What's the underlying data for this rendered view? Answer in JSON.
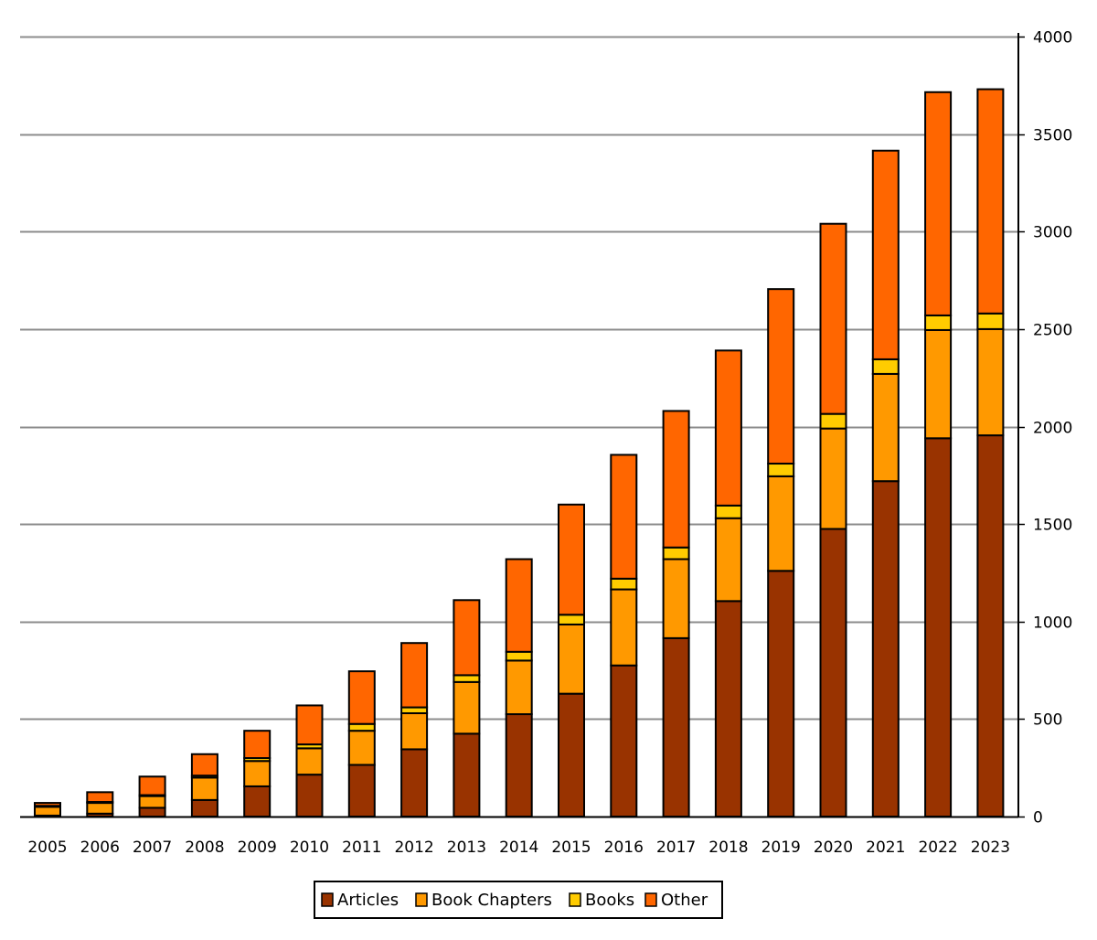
{
  "chart_data": {
    "type": "bar",
    "stacked": true,
    "title": "",
    "xlabel": "",
    "ylabel": "",
    "ylim": [
      0,
      4000
    ],
    "yticks": [
      0,
      500,
      1000,
      1500,
      2000,
      2500,
      3000,
      3500,
      4000
    ],
    "y_axis_side": "right",
    "grid": true,
    "legend_position": "bottom-center",
    "categories": [
      "2005",
      "2006",
      "2007",
      "2008",
      "2009",
      "2010",
      "2011",
      "2012",
      "2013",
      "2014",
      "2015",
      "2016",
      "2017",
      "2018",
      "2019",
      "2020",
      "2021",
      "2022",
      "2023"
    ],
    "series": [
      {
        "name": "Articles",
        "color": "#993300",
        "values": [
          5,
          15,
          45,
          85,
          155,
          215,
          265,
          345,
          425,
          525,
          630,
          775,
          915,
          1105,
          1260,
          1475,
          1720,
          1940,
          1955
        ]
      },
      {
        "name": "Book Chapters",
        "color": "#ff9900",
        "values": [
          45,
          55,
          60,
          115,
          130,
          135,
          175,
          185,
          265,
          275,
          355,
          390,
          405,
          425,
          485,
          515,
          550,
          555,
          545
        ]
      },
      {
        "name": "Books",
        "color": "#ffcc00",
        "values": [
          5,
          5,
          5,
          10,
          15,
          20,
          35,
          30,
          35,
          45,
          50,
          55,
          60,
          65,
          65,
          75,
          75,
          75,
          80
        ]
      },
      {
        "name": "Other",
        "color": "#ff6600",
        "values": [
          15,
          50,
          95,
          110,
          140,
          200,
          270,
          330,
          385,
          475,
          565,
          635,
          700,
          795,
          895,
          975,
          1070,
          1145,
          1150
        ]
      }
    ]
  }
}
